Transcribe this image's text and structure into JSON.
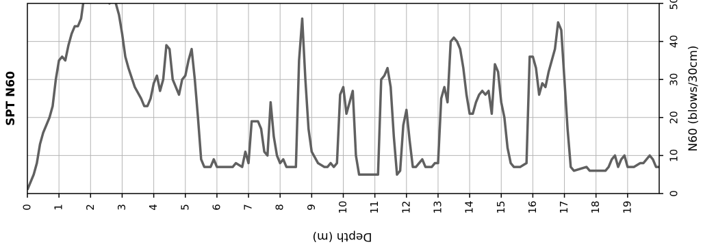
{
  "chart_data": {
    "type": "line",
    "title": "SPT N60",
    "x_label": "Depth (m)",
    "y_label": "N60 (blows/30cm)",
    "xlim": [
      0,
      20
    ],
    "ylim": [
      0,
      50
    ],
    "xticks": [
      0,
      1,
      2,
      3,
      4,
      5,
      6,
      7,
      8,
      9,
      10,
      11,
      12,
      13,
      14,
      15,
      16,
      17,
      18,
      19
    ],
    "yticks": [
      0,
      10,
      20,
      30,
      40,
      50
    ],
    "grid": true,
    "series": [
      {
        "name": "SPT N60",
        "color": "#606060",
        "x": [
          0,
          0.1,
          0.2,
          0.3,
          0.4,
          0.5,
          0.6,
          0.7,
          0.8,
          0.9,
          1.0,
          1.1,
          1.2,
          1.3,
          1.4,
          1.5,
          1.6,
          1.7,
          1.8,
          2.0,
          2.2,
          2.5,
          2.6,
          2.7,
          2.8,
          2.9,
          3.0,
          3.1,
          3.2,
          3.4,
          3.6,
          3.7,
          3.8,
          3.9,
          4.0,
          4.1,
          4.2,
          4.3,
          4.4,
          4.5,
          4.6,
          4.7,
          4.8,
          4.9,
          5.0,
          5.1,
          5.2,
          5.3,
          5.4,
          5.5,
          5.6,
          5.8,
          5.9,
          6.0,
          6.5,
          6.6,
          6.8,
          6.9,
          7.0,
          7.1,
          7.3,
          7.4,
          7.5,
          7.6,
          7.7,
          7.8,
          7.9,
          8.0,
          8.1,
          8.2,
          8.3,
          8.5,
          8.6,
          8.7,
          8.8,
          8.9,
          9.0,
          9.2,
          9.4,
          9.5,
          9.6,
          9.7,
          9.8,
          9.9,
          10.0,
          10.1,
          10.2,
          10.3,
          10.4,
          10.5,
          11.0,
          11.1,
          11.2,
          11.3,
          11.4,
          11.5,
          11.6,
          11.7,
          11.8,
          11.9,
          12.0,
          12.1,
          12.2,
          12.3,
          12.4,
          12.5,
          12.6,
          12.8,
          12.9,
          13.0,
          13.1,
          13.2,
          13.3,
          13.4,
          13.5,
          13.6,
          13.7,
          13.8,
          13.9,
          14.0,
          14.1,
          14.2,
          14.3,
          14.4,
          14.5,
          14.6,
          14.7,
          14.8,
          14.9,
          15.0,
          15.1,
          15.2,
          15.3,
          15.4,
          15.6,
          15.8,
          15.9,
          16.0,
          16.1,
          16.2,
          16.3,
          16.4,
          16.5,
          16.6,
          16.7,
          16.8,
          16.9,
          17.0,
          17.1,
          17.2,
          17.3,
          17.7,
          17.8,
          18.0,
          18.3,
          18.4,
          18.5,
          18.6,
          18.7,
          18.8,
          18.9,
          19.0,
          19.2,
          19.4,
          19.5,
          19.7,
          19.8,
          19.9,
          20.0
        ],
        "values": [
          1,
          3,
          5,
          8,
          13,
          16,
          18,
          20,
          23,
          30,
          35,
          36,
          35,
          39,
          42,
          44,
          44,
          46,
          52,
          55,
          56,
          54,
          50,
          52,
          50,
          47,
          42,
          36,
          33,
          28,
          25,
          23,
          23,
          25,
          29,
          31,
          27,
          30,
          39,
          38,
          30,
          28,
          26,
          30,
          31,
          35,
          38,
          30,
          20,
          9,
          7,
          7,
          9,
          7,
          7,
          8,
          7,
          11,
          8,
          19,
          19,
          17,
          11,
          10,
          24,
          15,
          10,
          8,
          9,
          7,
          7,
          7,
          35,
          46,
          30,
          17,
          11,
          8,
          7,
          7,
          8,
          7,
          8,
          26,
          28,
          21,
          24,
          27,
          10,
          5,
          5,
          5,
          30,
          31,
          33,
          28,
          15,
          5,
          6,
          18,
          22,
          14,
          7,
          7,
          8,
          9,
          7,
          7,
          8,
          8,
          25,
          28,
          24,
          40,
          41,
          40,
          38,
          33,
          26,
          21,
          21,
          24,
          26,
          27,
          26,
          27,
          21,
          34,
          32,
          24,
          20,
          12,
          8,
          7,
          7,
          8,
          36,
          36,
          33,
          26,
          29,
          28,
          32,
          35,
          38,
          45,
          43,
          30,
          17,
          7,
          6,
          7,
          6,
          6,
          6,
          7,
          9,
          10,
          7,
          9,
          10,
          7,
          7,
          8,
          8,
          10,
          9,
          7,
          7
        ]
      }
    ]
  }
}
